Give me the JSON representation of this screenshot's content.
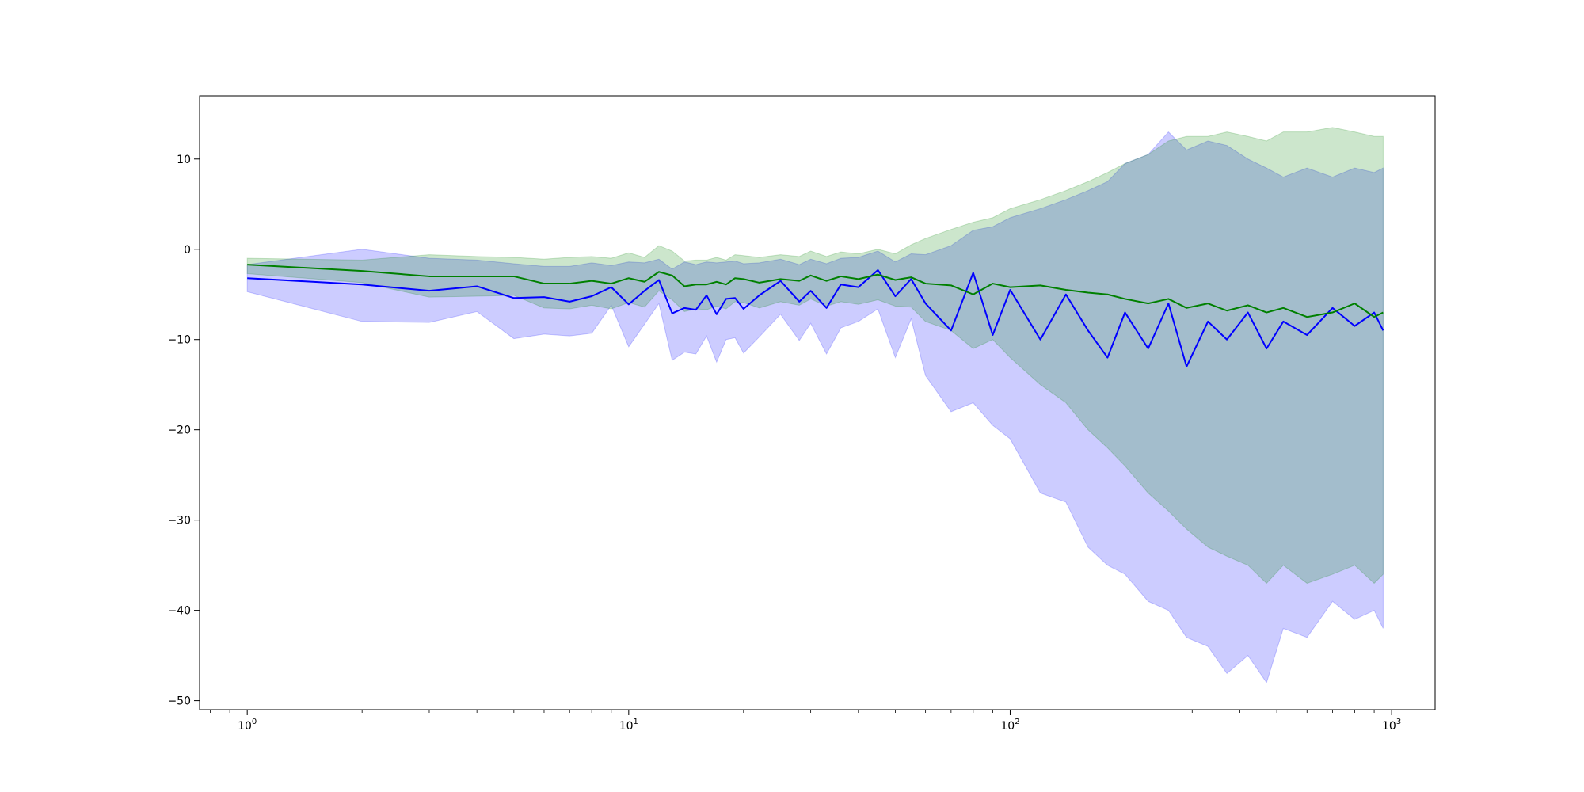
{
  "chart_data": {
    "type": "line",
    "title": "",
    "xlabel": "",
    "ylabel": "",
    "x_scale": "log",
    "xlim": [
      0.75,
      1300
    ],
    "ylim": [
      -51,
      17
    ],
    "grid": false,
    "x_ticks": [
      {
        "value": 1,
        "base": "10",
        "exp": "0"
      },
      {
        "value": 10,
        "base": "10",
        "exp": "1"
      },
      {
        "value": 100,
        "base": "10",
        "exp": "2"
      },
      {
        "value": 1000,
        "base": "10",
        "exp": "3"
      }
    ],
    "y_ticks": [
      {
        "value": 10,
        "label": "10"
      },
      {
        "value": 0,
        "label": "0"
      },
      {
        "value": -10,
        "label": "−10"
      },
      {
        "value": -20,
        "label": "−20"
      },
      {
        "value": -30,
        "label": "−30"
      },
      {
        "value": -40,
        "label": "−40"
      },
      {
        "value": -50,
        "label": "−50"
      }
    ],
    "series": [
      {
        "color": "#0000ff",
        "band_color": "#0000ff",
        "band_opacity": 0.2,
        "x": [
          1,
          2,
          3,
          4,
          5,
          6,
          7,
          8,
          9,
          10,
          11,
          12,
          13,
          14,
          15,
          16,
          17,
          18,
          19,
          20,
          22,
          25,
          28,
          30,
          33,
          36,
          40,
          45,
          50,
          55,
          60,
          70,
          80,
          90,
          100,
          120,
          140,
          160,
          180,
          200,
          230,
          260,
          290,
          330,
          370,
          420,
          470,
          520,
          600,
          700,
          800,
          900,
          950
        ],
        "y": [
          -3.2,
          -3.9,
          -4.6,
          -4.1,
          -5.4,
          -5.3,
          -5.8,
          -5.2,
          -4.2,
          -6.1,
          -4.6,
          -3.4,
          -7.1,
          -6.5,
          -6.7,
          -5.1,
          -7.2,
          -5.5,
          -5.4,
          -6.6,
          -5.1,
          -3.5,
          -5.8,
          -4.6,
          -6.5,
          -3.9,
          -4.2,
          -2.3,
          -5.2,
          -3.3,
          -6.0,
          -9.0,
          -2.6,
          -9.5,
          -4.5,
          -10.0,
          -5.0,
          -9.0,
          -12.0,
          -7.0,
          -11.0,
          -6.0,
          -13.0,
          -8.0,
          -10.0,
          -7.0,
          -11.0,
          -8.0,
          -9.5,
          -6.5,
          -8.5,
          -7.0,
          -9.0
        ],
        "lower": [
          -4.7,
          -8.0,
          -8.1,
          -6.9,
          -9.9,
          -9.4,
          -9.6,
          -9.3,
          -6.2,
          -10.8,
          -8.3,
          -6.0,
          -12.3,
          -11.4,
          -11.6,
          -9.6,
          -12.5,
          -10.0,
          -9.8,
          -11.5,
          -9.7,
          -7.2,
          -10.1,
          -8.2,
          -11.6,
          -8.7,
          -8.0,
          -6.6,
          -12.0,
          -7.7,
          -14.0,
          -18.0,
          -17.0,
          -19.5,
          -21.0,
          -27.0,
          -28.0,
          -33.0,
          -35.0,
          -36.0,
          -39.0,
          -40.0,
          -43.0,
          -44.0,
          -47.0,
          -45.0,
          -48.0,
          -42.0,
          -43.0,
          -39.0,
          -41.0,
          -40.0,
          -42.0
        ],
        "upper": [
          -1.7,
          0.0,
          -1.0,
          -1.2,
          -1.6,
          -1.9,
          -1.9,
          -1.5,
          -1.8,
          -1.4,
          -1.5,
          -1.1,
          -2.2,
          -1.4,
          -1.7,
          -1.4,
          -1.5,
          -1.4,
          -1.3,
          -1.6,
          -1.5,
          -1.1,
          -1.7,
          -1.1,
          -1.6,
          -1.0,
          -0.9,
          -0.2,
          -1.4,
          -0.5,
          -0.6,
          0.4,
          2.1,
          2.5,
          3.5,
          4.5,
          5.5,
          6.5,
          7.5,
          9.5,
          10.5,
          13.0,
          11.0,
          12.0,
          11.5,
          10.0,
          9.0,
          8.0,
          9.0,
          8.0,
          9.0,
          8.5,
          9.0
        ]
      },
      {
        "color": "#008000",
        "band_color": "#008000",
        "band_opacity": 0.2,
        "x": [
          1,
          2,
          3,
          4,
          5,
          6,
          7,
          8,
          9,
          10,
          11,
          12,
          13,
          14,
          15,
          16,
          17,
          18,
          19,
          20,
          22,
          25,
          28,
          30,
          33,
          36,
          40,
          45,
          50,
          55,
          60,
          70,
          80,
          90,
          100,
          120,
          140,
          160,
          180,
          200,
          230,
          260,
          290,
          330,
          370,
          420,
          470,
          520,
          600,
          700,
          800,
          900,
          950
        ],
        "y": [
          -1.7,
          -2.4,
          -3.0,
          -3.0,
          -3.0,
          -3.8,
          -3.8,
          -3.5,
          -3.8,
          -3.2,
          -3.6,
          -2.5,
          -2.9,
          -4.1,
          -3.9,
          -3.9,
          -3.6,
          -3.9,
          -3.2,
          -3.3,
          -3.7,
          -3.3,
          -3.5,
          -2.9,
          -3.5,
          -3.0,
          -3.3,
          -2.8,
          -3.4,
          -3.1,
          -3.8,
          -4.0,
          -5.0,
          -3.8,
          -4.2,
          -4.0,
          -4.5,
          -4.8,
          -5.0,
          -5.5,
          -6.0,
          -5.5,
          -6.5,
          -6.0,
          -6.8,
          -6.2,
          -7.0,
          -6.5,
          -7.5,
          -7.0,
          -6.0,
          -7.5,
          -7.0
        ],
        "lower": [
          -2.7,
          -3.7,
          -5.3,
          -5.2,
          -5.1,
          -6.5,
          -6.6,
          -6.2,
          -6.6,
          -5.9,
          -6.4,
          -4.6,
          -5.6,
          -6.9,
          -6.6,
          -6.7,
          -6.3,
          -6.6,
          -5.8,
          -5.9,
          -6.5,
          -5.8,
          -6.2,
          -5.5,
          -6.3,
          -5.8,
          -6.1,
          -5.6,
          -6.3,
          -6.4,
          -8.0,
          -9.0,
          -11.0,
          -10.0,
          -12.0,
          -15.0,
          -17.0,
          -20.0,
          -22.0,
          -24.0,
          -27.0,
          -29.0,
          -31.0,
          -33.0,
          -34.0,
          -35.0,
          -37.0,
          -35.0,
          -37.0,
          -36.0,
          -35.0,
          -37.0,
          -36.0
        ],
        "upper": [
          -1.0,
          -1.2,
          -0.6,
          -0.8,
          -0.9,
          -1.1,
          -0.9,
          -0.8,
          -1.0,
          -0.4,
          -0.9,
          0.4,
          -0.2,
          -1.3,
          -1.2,
          -1.2,
          -0.9,
          -1.2,
          -0.6,
          -0.7,
          -0.9,
          -0.6,
          -0.8,
          -0.2,
          -0.8,
          -0.3,
          -0.5,
          0.0,
          -0.5,
          0.5,
          1.2,
          2.2,
          3.0,
          3.5,
          4.5,
          5.5,
          6.5,
          7.5,
          8.5,
          9.5,
          10.5,
          12.0,
          12.5,
          12.5,
          13.0,
          12.5,
          12.0,
          13.0,
          13.0,
          13.5,
          13.0,
          12.5,
          12.5
        ]
      }
    ]
  }
}
